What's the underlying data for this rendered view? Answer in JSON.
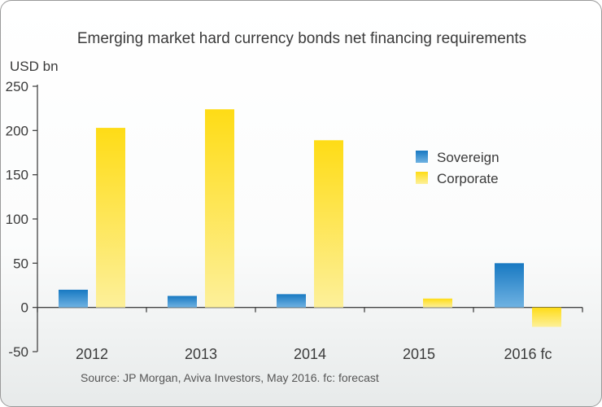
{
  "chart_data": {
    "type": "bar",
    "title": "Emerging market hard currency bonds net financing requirements",
    "ylabel": "USD bn",
    "ylim": [
      -50,
      250
    ],
    "yticks": [
      250,
      200,
      150,
      100,
      50,
      0,
      -50
    ],
    "categories": [
      "2012",
      "2013",
      "2014",
      "2015",
      "2016 fc"
    ],
    "series": [
      {
        "name": "Sovereign",
        "values": [
          20,
          13,
          15,
          0,
          50
        ],
        "color": "#1e82c8"
      },
      {
        "name": "Corporate",
        "values": [
          203,
          224,
          189,
          10,
          -22
        ],
        "color": "#fde03a"
      }
    ],
    "legend_position": "right",
    "grid": false,
    "source": "Source: JP Morgan, Aviva Investors, May 2016. fc: forecast"
  }
}
